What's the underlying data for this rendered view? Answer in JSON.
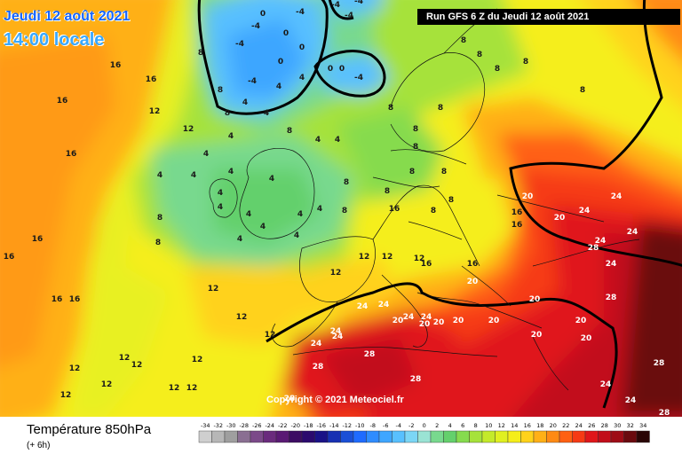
{
  "header": {
    "date": "Jeudi 12 août 2021",
    "local_time": "14:00 locale",
    "run": "Run GFS 6 Z du Jeudi 12 août 2021"
  },
  "copyright": "Copyright © 2021 Meteociel.fr",
  "footer": {
    "title": "Température 850hPa",
    "subtitle": "(+ 6h)"
  },
  "scale": {
    "labels": [
      "-34",
      "-32",
      "-30",
      "-28",
      "-26",
      "-24",
      "-22",
      "-20",
      "-18",
      "-16",
      "-14",
      "-12",
      "-10",
      "-8",
      "-6",
      "-4",
      "-2",
      "0",
      "2",
      "4",
      "6",
      "8",
      "10",
      "12",
      "14",
      "16",
      "18",
      "20",
      "22",
      "24",
      "26",
      "28",
      "30",
      "32",
      "34"
    ],
    "colors": [
      "#cfcfcf",
      "#b7b7b7",
      "#9f9f9f",
      "#8a6f92",
      "#7b4a89",
      "#6a2b7d",
      "#5a1a74",
      "#3d0c63",
      "#2b0a6e",
      "#1a1287",
      "#1730b3",
      "#1a4fd6",
      "#1f6bff",
      "#2f8cff",
      "#3ea6ff",
      "#58c0ff",
      "#7bd6f5",
      "#9ae3d4",
      "#78d98e",
      "#64d06c",
      "#86db4e",
      "#a6e23a",
      "#c4ea2a",
      "#e0f020",
      "#f5ee1a",
      "#ffd21a",
      "#ffb016",
      "#ff8a14",
      "#ff6012",
      "#f63a14",
      "#e0161a",
      "#c20d1a",
      "#9e0c16",
      "#6a0a0e",
      "#2a0606"
    ]
  },
  "labels": [
    {
      "t": "-4"
    },
    {
      "t": "-4"
    },
    {
      "t": "-4"
    },
    {
      "t": "0"
    },
    {
      "t": "0"
    },
    {
      "t": "0"
    },
    {
      "t": "0"
    },
    {
      "t": "-4"
    },
    {
      "t": "-4"
    },
    {
      "t": "-4"
    },
    {
      "t": "0"
    },
    {
      "t": "0"
    },
    {
      "t": "-4"
    },
    {
      "t": "-4"
    },
    {
      "t": "4"
    },
    {
      "t": "4"
    },
    {
      "t": "4"
    },
    {
      "t": "4"
    },
    {
      "t": "4"
    },
    {
      "t": "4"
    },
    {
      "t": "4"
    },
    {
      "t": "4"
    },
    {
      "t": "4"
    },
    {
      "t": "4"
    },
    {
      "t": "4"
    },
    {
      "t": "4"
    },
    {
      "t": "4"
    },
    {
      "t": "4"
    },
    {
      "t": "4"
    },
    {
      "t": "4"
    },
    {
      "t": "4"
    },
    {
      "t": "4"
    },
    {
      "t": "4"
    },
    {
      "t": "4"
    },
    {
      "t": "8"
    },
    {
      "t": "8"
    },
    {
      "t": "8"
    },
    {
      "t": "8"
    },
    {
      "t": "8"
    },
    {
      "t": "8"
    },
    {
      "t": "8"
    },
    {
      "t": "8"
    },
    {
      "t": "8"
    },
    {
      "t": "8"
    },
    {
      "t": "8"
    },
    {
      "t": "8"
    },
    {
      "t": "8"
    },
    {
      "t": "8"
    },
    {
      "t": "8"
    },
    {
      "t": "8"
    },
    {
      "t": "8"
    },
    {
      "t": "8"
    },
    {
      "t": "8"
    },
    {
      "t": "8"
    },
    {
      "t": "8"
    },
    {
      "t": "8"
    },
    {
      "t": "12"
    },
    {
      "t": "12"
    },
    {
      "t": "12"
    },
    {
      "t": "12"
    },
    {
      "t": "12"
    },
    {
      "t": "12"
    },
    {
      "t": "12"
    },
    {
      "t": "12"
    },
    {
      "t": "12"
    },
    {
      "t": "12"
    },
    {
      "t": "12"
    },
    {
      "t": "12"
    },
    {
      "t": "12"
    },
    {
      "t": "12"
    },
    {
      "t": "12"
    },
    {
      "t": "12"
    },
    {
      "t": "12"
    },
    {
      "t": "16"
    },
    {
      "t": "16"
    },
    {
      "t": "16"
    },
    {
      "t": "16"
    },
    {
      "t": "16"
    },
    {
      "t": "16"
    },
    {
      "t": "16"
    },
    {
      "t": "16"
    },
    {
      "t": "16"
    },
    {
      "t": "16"
    },
    {
      "t": "16"
    },
    {
      "t": "16"
    },
    {
      "t": "16"
    },
    {
      "t": "20"
    },
    {
      "t": "20"
    },
    {
      "t": "20"
    },
    {
      "t": "20"
    },
    {
      "t": "20"
    },
    {
      "t": "20"
    },
    {
      "t": "20"
    },
    {
      "t": "20"
    },
    {
      "t": "20"
    },
    {
      "t": "20"
    },
    {
      "t": "20"
    },
    {
      "t": "20"
    },
    {
      "t": "24"
    },
    {
      "t": "24"
    },
    {
      "t": "24"
    },
    {
      "t": "24"
    },
    {
      "t": "24"
    },
    {
      "t": "24"
    },
    {
      "t": "24"
    },
    {
      "t": "24"
    },
    {
      "t": "24"
    },
    {
      "t": "24"
    },
    {
      "t": "24"
    },
    {
      "t": "24"
    },
    {
      "t": "24"
    },
    {
      "t": "24"
    },
    {
      "t": "28"
    },
    {
      "t": "28"
    },
    {
      "t": "28"
    },
    {
      "t": "28"
    },
    {
      "t": "28"
    },
    {
      "t": "28"
    },
    {
      "t": "28"
    },
    {
      "t": "28"
    },
    {
      "t": "28"
    },
    {
      "t": "28"
    }
  ]
}
